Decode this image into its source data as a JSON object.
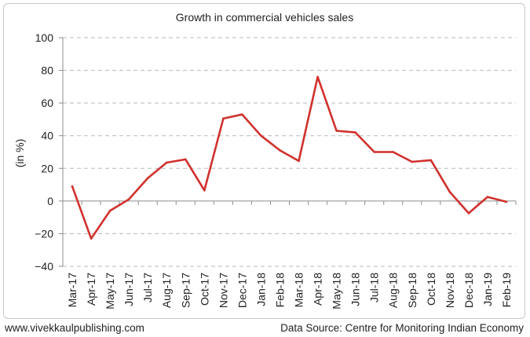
{
  "chart_data": {
    "type": "line",
    "title": "Growth in commercial vehicles sales",
    "ylabel": "(in %)",
    "xlabel": "",
    "ylim": [
      -40,
      100
    ],
    "yticks": [
      -40,
      -20,
      0,
      20,
      40,
      60,
      80,
      100
    ],
    "grid": true,
    "legend": "none",
    "categories": [
      "Mar-17",
      "Apr-17",
      "May-17",
      "Jun-17",
      "Jul-17",
      "Aug-17",
      "Sep-17",
      "Oct-17",
      "Nov-17",
      "Dec-17",
      "Jan-18",
      "Feb-18",
      "Mar-18",
      "Apr-18",
      "May-18",
      "Jun-18",
      "Jul-18",
      "Aug-18",
      "Sep-18",
      "Oct-18",
      "Nov-18",
      "Dec-18",
      "Jan-19",
      "Feb-19"
    ],
    "series": [
      {
        "color": "#d0312d",
        "values": [
          9,
          -23,
          -6,
          1,
          14,
          23.5,
          25.5,
          6.5,
          50.5,
          53,
          40,
          31,
          24.5,
          76,
          43,
          42,
          30,
          30,
          24,
          25,
          5.5,
          -7.5,
          2.5,
          -0.5
        ]
      }
    ]
  },
  "footer": {
    "website": "www.vivekkaulpublishing.com",
    "source": "Data Source: Centre for Monitoring Indian Economy"
  }
}
